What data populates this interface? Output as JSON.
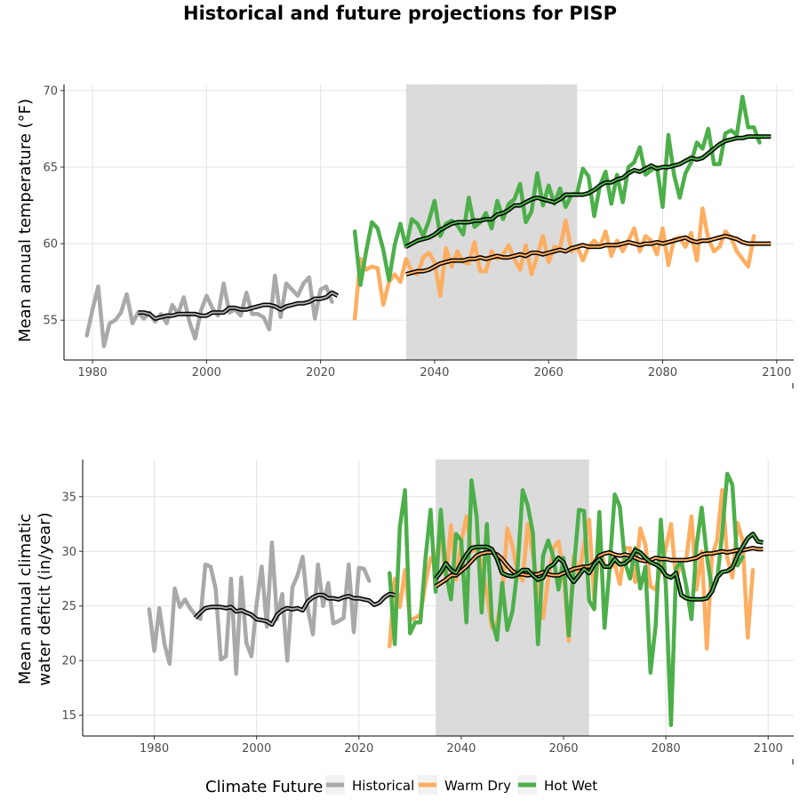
{
  "title": "Historical and future projections for PISP",
  "legend": {
    "title": "Climate Future",
    "items": [
      {
        "label": "Historical",
        "color": "#a9a9a9"
      },
      {
        "label": "Warm Dry",
        "color": "#fdae61"
      },
      {
        "label": "Hot Wet",
        "color": "#4daf4a"
      }
    ]
  },
  "chart_data": [
    {
      "type": "line",
      "ylabel": "Mean annual temperature (°F)",
      "xlim": [
        1975,
        2103
      ],
      "ylim": [
        52.4,
        70.4
      ],
      "xticks": [
        1980,
        2000,
        2020,
        2040,
        2060,
        2080,
        2100
      ],
      "yticks": [
        55,
        60,
        65,
        70
      ],
      "shade": [
        2035,
        2065
      ],
      "series": [
        {
          "name": "Historical",
          "color": "#a9a9a9",
          "x0": 1979,
          "values": [
            54.0,
            55.7,
            57.2,
            53.3,
            54.8,
            55.0,
            55.5,
            56.7,
            54.8,
            55.5,
            55.1,
            55.5,
            54.9,
            55.4,
            54.8,
            56.0,
            55.4,
            56.5,
            54.9,
            53.8,
            55.6,
            56.6,
            55.8,
            55.3,
            57.4,
            55.5,
            55.7,
            55.3,
            56.8,
            55.4,
            55.4,
            55.2,
            54.4,
            57.9,
            55.2,
            57.4,
            57.0,
            56.6,
            57.4,
            57.8,
            55.1,
            57.0,
            57.2,
            56.2
          ]
        },
        {
          "name": "Warm Dry",
          "color": "#fdae61",
          "x0": 2026,
          "values": [
            55.1,
            59.0,
            58.3,
            58.5,
            58.4,
            56.0,
            57.5,
            58.0,
            57.5,
            59.0,
            58.2,
            58.0,
            59.1,
            59.4,
            58.8,
            56.6,
            59.7,
            58.5,
            59.5,
            58.8,
            58.7,
            60.1,
            58.2,
            58.2,
            59.5,
            59.0,
            59.3,
            59.9,
            59.0,
            58.3,
            59.9,
            58.0,
            59.2,
            60.5,
            58.8,
            59.8,
            59.7,
            61.5,
            59.5,
            59.8,
            58.9,
            59.8,
            60.2,
            59.8,
            60.8,
            59.2,
            60.2,
            59.5,
            60.2,
            61.0,
            59.5,
            60.5,
            60.2,
            59.3,
            61.0,
            58.6,
            60.3,
            60.4,
            59.8,
            60.7,
            58.9,
            62.3,
            60.3,
            59.5,
            59.8,
            60.8,
            60.4,
            59.5,
            59.0,
            58.5,
            60.5
          ]
        },
        {
          "name": "Hot Wet",
          "color": "#4daf4a",
          "x0": 2026,
          "values": [
            60.8,
            57.3,
            59.5,
            61.4,
            61.0,
            59.6,
            57.6,
            59.9,
            61.3,
            59.8,
            61.6,
            61.3,
            60.5,
            61.5,
            62.8,
            60.5,
            61.3,
            61.5,
            61.2,
            60.6,
            63.0,
            61.1,
            61.4,
            62.0,
            61.0,
            62.8,
            61.6,
            62.6,
            62.9,
            63.9,
            61.4,
            62.1,
            64.6,
            62.5,
            63.8,
            62.6,
            63.6,
            62.4,
            63.2,
            63.3,
            64.9,
            64.4,
            61.8,
            63.8,
            64.7,
            62.6,
            64.5,
            62.7,
            65.0,
            65.3,
            66.3,
            64.5,
            64.8,
            65.0,
            62.4,
            67.1,
            64.5,
            63.0,
            64.6,
            65.3,
            66.6,
            66.2,
            67.5,
            65.2,
            65.2,
            67.2,
            67.4,
            67.1,
            69.6,
            67.6,
            67.6,
            66.6
          ]
        }
      ],
      "smooth": [
        {
          "x0": 1988,
          "values": [
            55.5,
            55.5,
            55.4,
            55.1,
            55.2,
            55.3,
            55.3,
            55.4,
            55.4,
            55.4,
            55.4,
            55.3,
            55.3,
            55.5,
            55.5,
            55.5,
            55.8,
            55.8,
            55.7,
            55.7,
            55.8,
            55.9,
            56.0,
            56.0,
            55.9,
            55.7,
            55.9,
            56.0,
            56.1,
            56.1,
            56.2,
            56.4,
            56.4,
            56.5,
            56.8,
            56.6
          ]
        },
        {
          "x0": 2035,
          "values": [
            58.0,
            58.1,
            58.2,
            58.2,
            58.3,
            58.5,
            58.7,
            58.8,
            58.9,
            58.9,
            58.9,
            59.0,
            59.0,
            59.1,
            59.0,
            59.1,
            59.2,
            59.1,
            59.1,
            59.2,
            59.3,
            59.2,
            59.4,
            59.4,
            59.3,
            59.4,
            59.5,
            59.6,
            59.5,
            59.7,
            59.8,
            59.9,
            59.8,
            59.8,
            59.8,
            59.9,
            59.9,
            59.9,
            60.0,
            60.1,
            60.0,
            59.9,
            60.0,
            60.0,
            60.1,
            60.0,
            60.1,
            60.2,
            60.3,
            60.4,
            60.2,
            60.1,
            60.2,
            60.2,
            60.3,
            60.4,
            60.5,
            60.4,
            60.3,
            60.1,
            60.0,
            60.0,
            60.0,
            60.0,
            60.0
          ]
        },
        {
          "x0": 2035,
          "values": [
            59.8,
            60.0,
            60.2,
            60.3,
            60.4,
            60.6,
            60.9,
            61.1,
            61.3,
            61.4,
            61.4,
            61.4,
            61.5,
            61.5,
            61.6,
            61.6,
            61.9,
            62.0,
            62.2,
            62.5,
            62.5,
            62.7,
            62.9,
            63.0,
            62.9,
            62.8,
            62.7,
            62.9,
            63.2,
            63.2,
            63.2,
            63.2,
            63.3,
            63.5,
            63.8,
            64.0,
            64.0,
            64.2,
            64.3,
            64.6,
            64.8,
            64.7,
            64.9,
            65.1,
            64.9,
            65.0,
            65.0,
            65.1,
            65.2,
            65.4,
            65.6,
            65.5,
            65.6,
            65.9,
            66.2,
            66.5,
            66.7,
            66.8,
            66.9,
            66.9,
            67.0,
            67.0,
            67.0,
            67.0,
            67.0
          ]
        }
      ]
    },
    {
      "type": "line",
      "ylabel": "Mean annual climatic water deficit (in/year)",
      "xlim": [
        1966,
        2105
      ],
      "ylim": [
        13.1,
        38.4
      ],
      "xticks": [
        1980,
        2000,
        2020,
        2040,
        2060,
        2080,
        2100
      ],
      "yticks": [
        15,
        20,
        25,
        30,
        35
      ],
      "shade": [
        2035,
        2065
      ],
      "series": [
        {
          "name": "Historical",
          "color": "#a9a9a9",
          "x0": 1979,
          "values": [
            24.7,
            20.9,
            24.8,
            21.5,
            19.7,
            26.6,
            24.9,
            25.6,
            24.8,
            24.2,
            23.8,
            28.8,
            28.6,
            26.6,
            20.1,
            20.4,
            27.5,
            18.8,
            27.6,
            21.6,
            20.4,
            25.2,
            28.6,
            23.1,
            30.8,
            23.8,
            26.1,
            20.0,
            26.7,
            27.8,
            29.5,
            24.8,
            22.4,
            28.8,
            25.0,
            27.1,
            23.4,
            23.6,
            23.9,
            28.8,
            22.6,
            28.5,
            28.4,
            27.3
          ]
        },
        {
          "name": "Warm Dry",
          "color": "#fdae61",
          "x0": 2026,
          "values": [
            21.3,
            27.5,
            24.9,
            28.3,
            23.7,
            23.9,
            24.2,
            27.0,
            29.4,
            28.7,
            32.0,
            27.4,
            32.4,
            27.4,
            30.9,
            33.2,
            30.0,
            30.2,
            29.0,
            26.1,
            23.0,
            23.5,
            26.0,
            32.1,
            30.5,
            28.0,
            27.3,
            32.5,
            29.7,
            26.8,
            23.9,
            27.5,
            30.3,
            30.9,
            28.1,
            21.8,
            29.6,
            27.7,
            30.6,
            32.9,
            25.5,
            30.6,
            28.7,
            28.4,
            28.9,
            27.0,
            30.3,
            30.3,
            27.2,
            32.1,
            30.6,
            26.8,
            26.5,
            28.5,
            30.3,
            32.5,
            27.4,
            29.0,
            29.3,
            33.2,
            26.5,
            30.0,
            21.1,
            29.5,
            31.0,
            35.6,
            29.4,
            27.6,
            32.6,
            31.0,
            22.1,
            28.3
          ]
        },
        {
          "name": "Hot Wet",
          "color": "#4daf4a",
          "x0": 2026,
          "values": [
            28.0,
            21.5,
            32.2,
            35.6,
            22.5,
            23.5,
            23.5,
            29.3,
            33.8,
            26.3,
            33.8,
            28.0,
            25.6,
            31.6,
            31.0,
            23.5,
            36.5,
            33.2,
            24.4,
            32.5,
            23.7,
            21.9,
            27.1,
            22.8,
            24.5,
            28.4,
            35.6,
            34.2,
            31.7,
            21.5,
            29.6,
            31.0,
            29.5,
            26.5,
            29.4,
            22.3,
            28.4,
            33.8,
            33.7,
            25.5,
            24.7,
            33.6,
            23.0,
            28.5,
            35.2,
            34.1,
            29.0,
            27.5,
            30.3,
            26.6,
            28.6,
            18.9,
            23.2,
            32.9,
            26.8,
            14.1,
            28.4,
            29.2,
            26.8,
            23.8,
            30.5,
            34.0,
            29.6,
            26.5,
            27.3,
            31.6,
            37.1,
            36.1,
            28.7,
            29.5
          ]
        }
      ],
      "smooth": [
        {
          "x0": 1988,
          "values": [
            23.9,
            24.4,
            24.8,
            24.9,
            24.9,
            24.9,
            24.8,
            24.9,
            24.5,
            24.6,
            24.4,
            24.2,
            23.8,
            23.7,
            23.6,
            23.3,
            24.2,
            24.6,
            24.8,
            24.7,
            24.8,
            24.6,
            25.4,
            25.8,
            26.0,
            26.0,
            25.7,
            25.7,
            25.6,
            25.8,
            25.9,
            25.7,
            25.7,
            25.6,
            25.5,
            25.1,
            25.3,
            25.8,
            26.1,
            26.0
          ]
        },
        {
          "x0": 2035,
          "values": [
            26.8,
            27.1,
            27.4,
            27.8,
            27.8,
            28.2,
            28.6,
            29.1,
            29.6,
            29.8,
            29.9,
            29.9,
            29.7,
            29.3,
            28.7,
            28.2,
            27.9,
            27.9,
            27.8,
            27.9,
            27.9,
            28.1,
            27.9,
            27.8,
            27.8,
            28.0,
            28.2,
            28.4,
            28.5,
            28.6,
            28.6,
            28.9,
            29.6,
            29.8,
            29.9,
            29.7,
            29.6,
            29.7,
            29.6,
            29.4,
            29.2,
            29.1,
            29.2,
            29.4,
            29.3,
            29.3,
            29.2,
            29.2,
            29.2,
            29.2,
            29.3,
            29.4,
            29.7,
            29.8,
            29.8,
            29.9,
            30.0,
            29.9,
            30.0,
            30.1,
            30.1,
            30.2,
            30.3,
            30.2,
            30.2
          ]
        },
        {
          "x0": 2035,
          "values": [
            27.5,
            28.1,
            28.9,
            28.3,
            28.0,
            28.9,
            29.7,
            30.3,
            30.4,
            30.4,
            30.4,
            30.2,
            29.3,
            28.0,
            27.8,
            27.7,
            27.9,
            28.3,
            28.3,
            27.8,
            27.4,
            27.6,
            28.5,
            28.8,
            29.4,
            29.0,
            27.8,
            27.2,
            27.8,
            28.4,
            28.0,
            28.8,
            29.3,
            28.6,
            28.6,
            29.3,
            28.8,
            28.9,
            29.3,
            30.1,
            29.9,
            29.4,
            29.0,
            28.8,
            28.5,
            27.8,
            27.6,
            28.0,
            26.0,
            25.7,
            25.6,
            25.6,
            25.6,
            25.7,
            26.3,
            27.6,
            28.1,
            28.2,
            28.5,
            29.6,
            30.4,
            31.2,
            31.6,
            30.9,
            30.8
          ]
        }
      ]
    }
  ]
}
